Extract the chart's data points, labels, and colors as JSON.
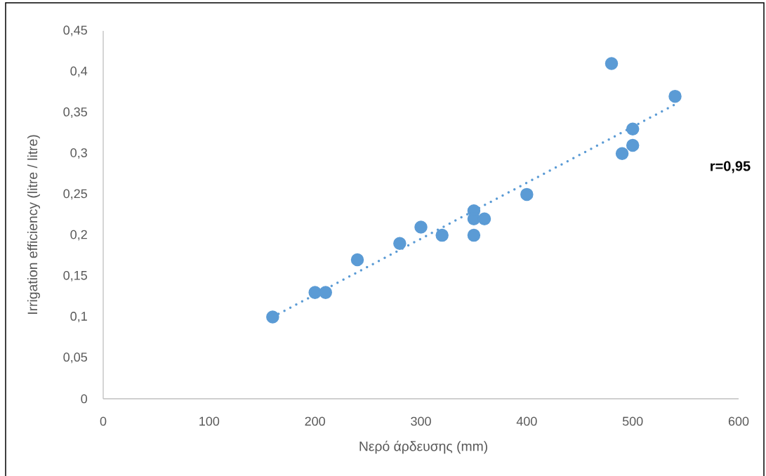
{
  "chart_data": {
    "type": "scatter",
    "xlabel": "Νερό άρδευσης (mm)",
    "ylabel": "Irrigation efficiency (litre / litre)",
    "xlim": [
      0,
      600
    ],
    "xticks": [
      0,
      100,
      200,
      300,
      400,
      500,
      600
    ],
    "ylim": [
      0,
      0.45
    ],
    "yticks": [
      0,
      {
        "value": 0.05,
        "label": "0,05"
      },
      {
        "value": 0.1,
        "label": "0,1"
      },
      {
        "value": 0.15,
        "label": "0,15"
      },
      {
        "value": 0.2,
        "label": "0,2"
      },
      {
        "value": 0.25,
        "label": "0,25"
      },
      {
        "value": 0.3,
        "label": "0,3"
      },
      {
        "value": 0.35,
        "label": "0,35"
      },
      {
        "value": 0.4,
        "label": "0,4"
      },
      {
        "value": 0.45,
        "label": "0,45"
      }
    ],
    "series": [
      {
        "color": "#5b9bd5",
        "marker": "circle",
        "x": [
          160,
          200,
          210,
          240,
          280,
          300,
          320,
          350,
          350,
          350,
          360,
          400,
          480,
          490,
          500,
          500,
          540
        ],
        "values": [
          0.1,
          0.13,
          0.13,
          0.17,
          0.19,
          0.21,
          0.2,
          0.23,
          0.22,
          0.2,
          0.22,
          0.25,
          0.41,
          0.3,
          0.33,
          0.31,
          0.37
        ]
      },
      {
        "type": "line",
        "color": "#5b9bd5",
        "marker": "none",
        "line_style": "dotted",
        "x": [
          160,
          540
        ],
        "values": [
          0.1,
          0.36
        ]
      }
    ],
    "annotations": [
      "r=0,95"
    ]
  }
}
